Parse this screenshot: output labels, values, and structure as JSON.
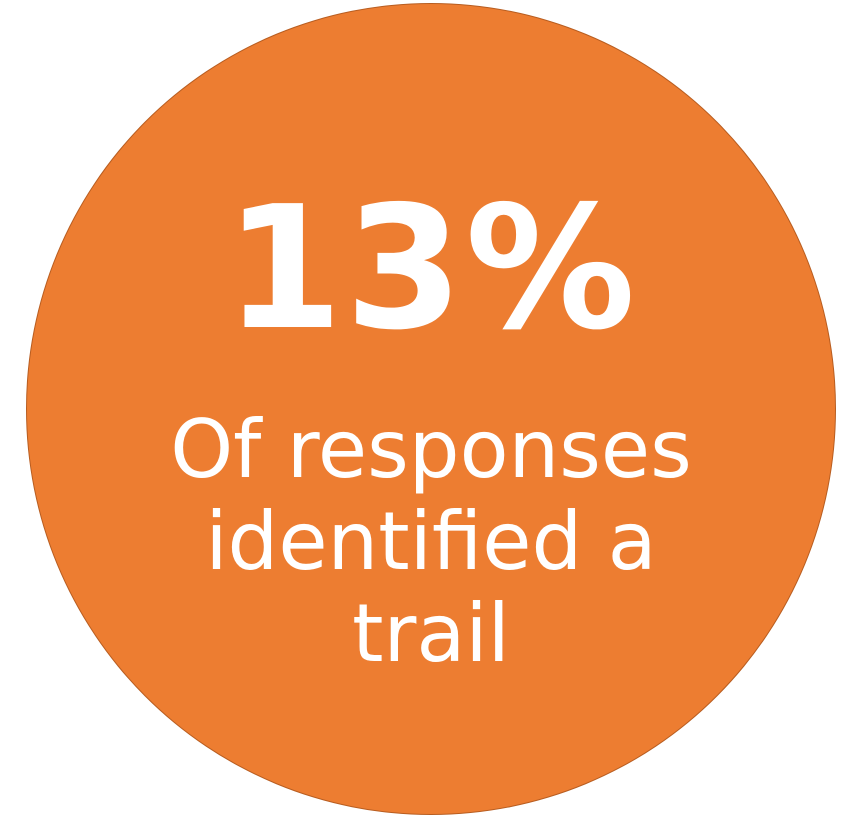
{
  "infographic": {
    "percentage": "13%",
    "caption_lines": [
      "Of responses",
      "identified a",
      "trail"
    ],
    "circle_color": "#ed7d31",
    "text_color": "#ffffff"
  }
}
